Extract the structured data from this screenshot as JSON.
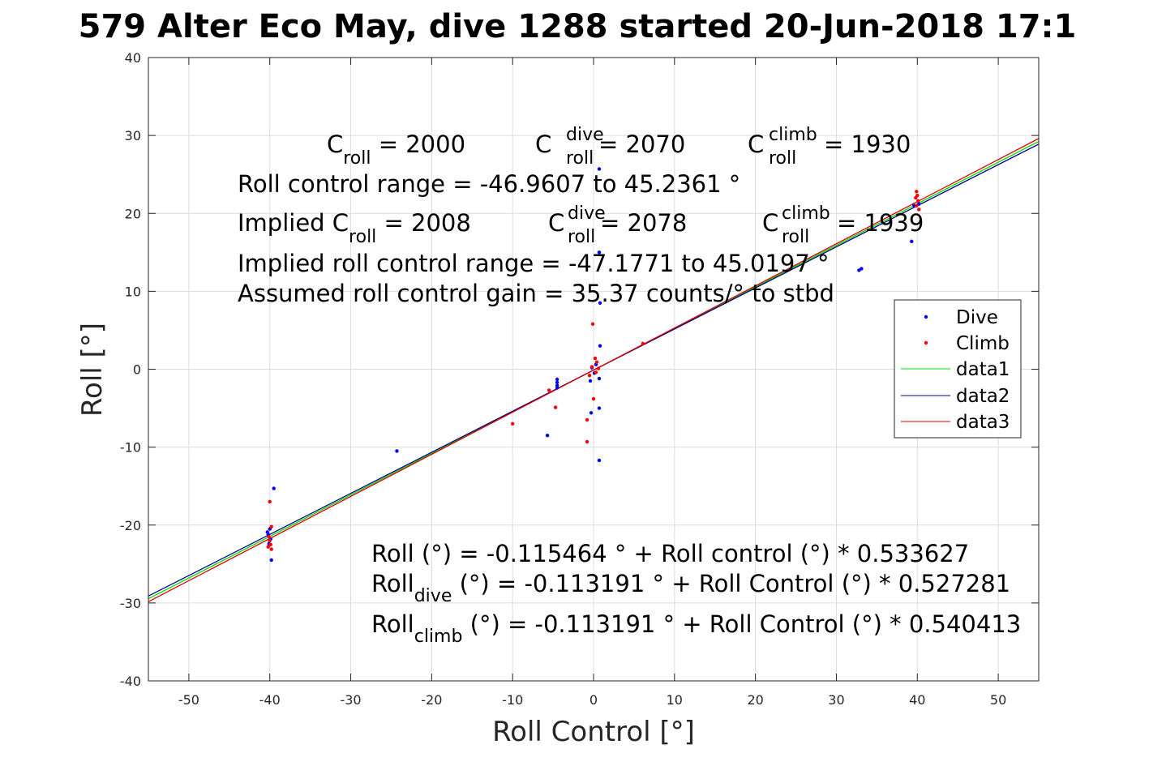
{
  "chart_data": {
    "type": "scatter",
    "title": "579 Alter Eco May, dive 1288 started 20-Jun-2018 17:1",
    "xlabel": "Roll Control [°]",
    "ylabel": "Roll [°]",
    "xlim": [
      -55,
      55
    ],
    "ylim": [
      -40,
      40
    ],
    "xticks": [
      -50,
      -40,
      -30,
      -20,
      -10,
      0,
      10,
      20,
      30,
      40,
      50
    ],
    "yticks": [
      -40,
      -30,
      -20,
      -10,
      0,
      10,
      20,
      30,
      40
    ],
    "grid": true,
    "legend_position": "right",
    "series": [
      {
        "name": "Dive",
        "kind": "points",
        "color": "#0000ff",
        "points": [
          [
            -40,
            -20.5
          ],
          [
            -40.2,
            -21.2
          ],
          [
            -39.9,
            -21.8
          ],
          [
            -40.1,
            -22.4
          ],
          [
            -39.8,
            -24.5
          ],
          [
            -39.5,
            -15.3
          ],
          [
            -40.3,
            -20.9
          ],
          [
            -24.3,
            -10.5
          ],
          [
            -5.7,
            -8.5
          ],
          [
            -4.5,
            -1.3
          ],
          [
            -4.5,
            -1.7
          ],
          [
            -4.5,
            -2.1
          ],
          [
            -4.5,
            -2.4
          ],
          [
            0.7,
            25.7
          ],
          [
            0.7,
            15.0
          ],
          [
            0.8,
            8.5
          ],
          [
            0.8,
            3.0
          ],
          [
            0.7,
            -1.2
          ],
          [
            0.7,
            -5.0
          ],
          [
            0.7,
            -11.7
          ],
          [
            -0.3,
            -5.6
          ],
          [
            -0.4,
            -1.5
          ],
          [
            -0.2,
            0.2
          ],
          [
            0.1,
            -0.5
          ],
          [
            0.3,
            0.6
          ],
          [
            32.8,
            12.7
          ],
          [
            33.1,
            12.9
          ],
          [
            39.3,
            16.4
          ],
          [
            39.6,
            21.0
          ],
          [
            40.2,
            21.2
          ]
        ]
      },
      {
        "name": "Climb",
        "kind": "points",
        "color": "#ff0000",
        "points": [
          [
            -40,
            -17.0
          ],
          [
            -39.8,
            -20.2
          ],
          [
            -40.1,
            -21.5
          ],
          [
            -40.0,
            -22.0
          ],
          [
            -39.9,
            -22.5
          ],
          [
            -40.2,
            -22.8
          ],
          [
            -39.8,
            -23.1
          ],
          [
            -10.0,
            -7.0
          ],
          [
            -5.5,
            -2.7
          ],
          [
            -4.7,
            -4.9
          ],
          [
            -0.8,
            -9.3
          ],
          [
            -0.8,
            -6.5
          ],
          [
            -0.1,
            5.8
          ],
          [
            0.0,
            -3.8
          ],
          [
            0.2,
            1.4
          ],
          [
            0.4,
            0.9
          ],
          [
            -0.2,
            0.3
          ],
          [
            0.3,
            -0.4
          ],
          [
            0.6,
            0.1
          ],
          [
            -0.5,
            -0.8
          ],
          [
            6.1,
            3.3
          ],
          [
            39.9,
            22.8
          ],
          [
            40.0,
            22.3
          ],
          [
            39.8,
            22.0
          ],
          [
            40.1,
            21.6
          ],
          [
            39.9,
            21.0
          ],
          [
            40.2,
            20.5
          ]
        ]
      },
      {
        "name": "data1",
        "kind": "line",
        "color": "#00dd00",
        "intercept": -0.115464,
        "slope": 0.533627
      },
      {
        "name": "data2",
        "kind": "line",
        "color": "#00008b",
        "intercept": -0.113191,
        "slope": 0.527281
      },
      {
        "name": "data3",
        "kind": "line",
        "color": "#dd0000",
        "intercept": -0.113191,
        "slope": 0.540413
      }
    ],
    "annotations": {
      "c_roll": {
        "base": "C",
        "sub": "roll",
        "rest": " = 2000"
      },
      "c_roll_dive": {
        "base": "C",
        "sup": "dive",
        "sub": "roll",
        "rest": " = 2070"
      },
      "c_roll_climb": {
        "base": "C",
        "sup": "climb",
        "sub": "roll",
        "rest": " = 1930"
      },
      "range": "Roll control range = -46.9607 to 45.2361 °",
      "implied_c_roll": {
        "prefix": "Implied ",
        "base": "C",
        "sub": "roll",
        "rest": " = 2008"
      },
      "implied_c_roll_dive": {
        "base": "C",
        "sup": "dive",
        "sub": "roll",
        "rest": " = 2078"
      },
      "implied_c_roll_climb": {
        "base": "C",
        "sup": "climb",
        "sub": "roll",
        "rest": " = 1939"
      },
      "implied_range": "Implied roll control range = -47.1771 to 45.0197 °",
      "gain": "Assumed roll control gain = 35.37 counts/° to stbd",
      "fit": "Roll (°) = -0.115464 ° + Roll control (°) * 0.533627",
      "fit_dive": {
        "base": "Roll",
        "sub": "dive",
        "rest": " (°) = -0.113191 ° + Roll Control (°) * 0.527281"
      },
      "fit_climb": {
        "base": "Roll",
        "sub": "climb",
        "rest": " (°) = -0.113191 ° + Roll Control (°) * 0.540413"
      }
    }
  }
}
